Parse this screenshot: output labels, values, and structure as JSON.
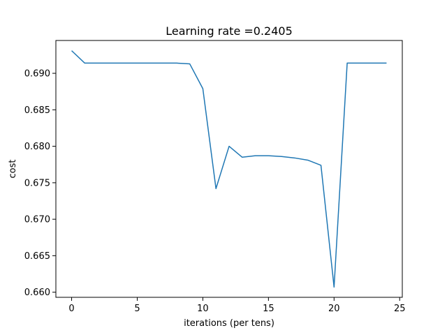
{
  "chart_data": {
    "type": "line",
    "title": "Learning rate =0.2405",
    "xlabel": "iterations (per tens)",
    "ylabel": "cost",
    "xlim": [
      -1.2,
      25.2
    ],
    "ylim": [
      0.6593,
      0.6945
    ],
    "xticks": [
      0,
      5,
      10,
      15,
      20,
      25
    ],
    "xtick_labels": [
      "0",
      "5",
      "10",
      "15",
      "20",
      "25"
    ],
    "yticks": [
      0.66,
      0.665,
      0.67,
      0.675,
      0.68,
      0.685,
      0.69
    ],
    "ytick_labels": [
      "0.660",
      "0.665",
      "0.670",
      "0.675",
      "0.680",
      "0.685",
      "0.690"
    ],
    "grid": false,
    "line_color": "#1f77b4",
    "series": [
      {
        "x": [
          0,
          1,
          2,
          3,
          4,
          5,
          6,
          7,
          8,
          9,
          10,
          11,
          12,
          13,
          14,
          15,
          16,
          17,
          18,
          19,
          20,
          21,
          22,
          23,
          24
        ],
        "values": [
          0.6931,
          0.6914,
          0.6914,
          0.6914,
          0.6914,
          0.6914,
          0.6914,
          0.6914,
          0.6914,
          0.6913,
          0.6879,
          0.6742,
          0.68,
          0.6785,
          0.6787,
          0.6787,
          0.6786,
          0.6784,
          0.6781,
          0.6774,
          0.6607,
          0.6914,
          0.6914,
          0.6914,
          0.6914
        ]
      }
    ]
  }
}
